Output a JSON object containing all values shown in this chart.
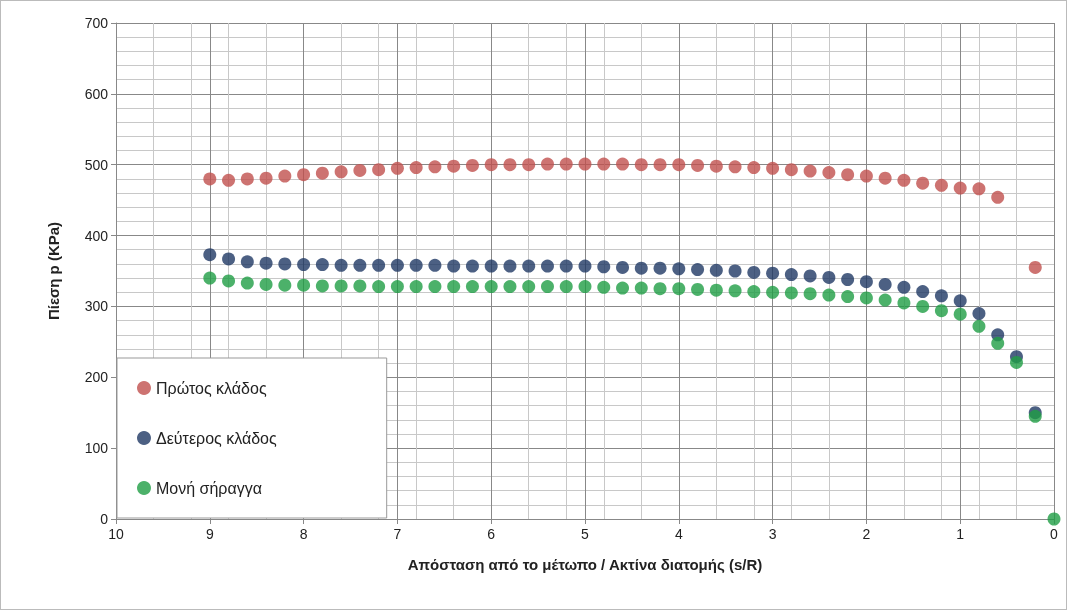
{
  "chart_data": {
    "type": "scatter",
    "xlabel": "Απόσταση από το μέτωπο / Ακτίνα διατομής (s/R)",
    "ylabel": "Πίεση p (KPa)",
    "xlim": [
      10,
      0
    ],
    "xticks": [
      10,
      9,
      8,
      7,
      6,
      5,
      4,
      3,
      2,
      1,
      0
    ],
    "ylim": [
      0,
      700
    ],
    "yticks": [
      0,
      100,
      200,
      300,
      400,
      500,
      600,
      700
    ],
    "grid": true,
    "legend": "bottom left",
    "marker": "circle",
    "series": [
      {
        "name": "Πρώτος κλάδος",
        "color": "#c0504d",
        "x": [
          9,
          8.8,
          8.6,
          8.4,
          8.2,
          8,
          7.8,
          7.6,
          7.4,
          7.2,
          7,
          6.8,
          6.6,
          6.4,
          6.2,
          6,
          5.8,
          5.6,
          5.4,
          5.2,
          5,
          4.8,
          4.6,
          4.4,
          4.2,
          4,
          3.8,
          3.6,
          3.4,
          3.2,
          3,
          2.8,
          2.6,
          2.4,
          2.2,
          2,
          1.8,
          1.6,
          1.4,
          1.2,
          1,
          0.8,
          0.6,
          0.2
        ],
        "values": [
          480,
          478,
          480,
          481,
          484,
          486,
          488,
          490,
          492,
          493,
          495,
          496,
          497,
          498,
          499,
          500,
          500,
          500,
          501,
          501,
          501,
          501,
          501,
          500,
          500,
          500,
          499,
          498,
          497,
          496,
          495,
          493,
          491,
          489,
          486,
          484,
          481,
          478,
          474,
          471,
          467,
          466,
          454,
          355
        ]
      },
      {
        "name": "Δεύτερος κλάδος",
        "color": "#1f3864",
        "x": [
          9,
          8.8,
          8.6,
          8.4,
          8.2,
          8,
          7.8,
          7.6,
          7.4,
          7.2,
          7,
          6.8,
          6.6,
          6.4,
          6.2,
          6,
          5.8,
          5.6,
          5.4,
          5.2,
          5,
          4.8,
          4.6,
          4.4,
          4.2,
          4,
          3.8,
          3.6,
          3.4,
          3.2,
          3,
          2.8,
          2.6,
          2.4,
          2.2,
          2,
          1.8,
          1.6,
          1.4,
          1.2,
          1,
          0.8,
          0.6,
          0.4,
          0.2
        ],
        "values": [
          373,
          367,
          363,
          361,
          360,
          359,
          359,
          358,
          358,
          358,
          358,
          358,
          358,
          357,
          357,
          357,
          357,
          357,
          357,
          357,
          357,
          356,
          355,
          354,
          354,
          353,
          352,
          351,
          350,
          348,
          347,
          345,
          343,
          341,
          338,
          335,
          331,
          327,
          321,
          315,
          308,
          290,
          260,
          229,
          150
        ]
      },
      {
        "name": "Μονή σήραγγα",
        "color": "#1f9e45",
        "x": [
          9,
          8.8,
          8.6,
          8.4,
          8.2,
          8,
          7.8,
          7.6,
          7.4,
          7.2,
          7,
          6.8,
          6.6,
          6.4,
          6.2,
          6,
          5.8,
          5.6,
          5.4,
          5.2,
          5,
          4.8,
          4.6,
          4.4,
          4.2,
          4,
          3.8,
          3.6,
          3.4,
          3.2,
          3,
          2.8,
          2.6,
          2.4,
          2.2,
          2,
          1.8,
          1.6,
          1.4,
          1.2,
          1,
          0.8,
          0.6,
          0.4,
          0.2,
          0
        ],
        "values": [
          340,
          336,
          333,
          331,
          330,
          330,
          329,
          329,
          329,
          328,
          328,
          328,
          328,
          328,
          328,
          328,
          328,
          328,
          328,
          328,
          328,
          327,
          326,
          326,
          325,
          325,
          324,
          323,
          322,
          321,
          320,
          319,
          318,
          316,
          314,
          312,
          309,
          305,
          300,
          294,
          289,
          272,
          248,
          221,
          145,
          0
        ]
      }
    ]
  }
}
